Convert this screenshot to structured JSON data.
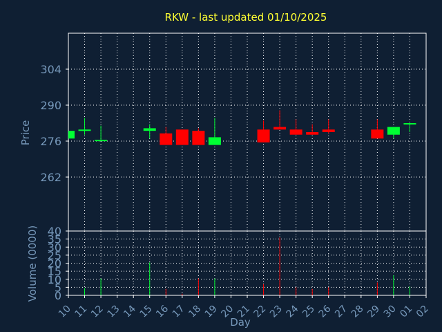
{
  "chart_data": [
    {
      "type": "candlestick",
      "title": "RKW - last updated 01/10/2025",
      "ylabel": "Price",
      "yticks": [
        "262",
        "276",
        "290",
        "304"
      ],
      "ylim": [
        241,
        318
      ],
      "grid": true,
      "colors": {
        "up": "#00ff33",
        "down": "#ff0000",
        "title": "#ffff33",
        "axis_text": "#7799bb",
        "background": "#0f1f33",
        "grid": "#ffffff"
      },
      "candles": [
        {
          "x": "10",
          "open": 277,
          "high": 280,
          "low": 277,
          "close": 280
        },
        {
          "x": "11",
          "open": 280.5,
          "high": 285,
          "low": 278.5,
          "close": 280.5
        },
        {
          "x": "12",
          "open": 276.5,
          "high": 282,
          "low": 276.5,
          "close": 276.5
        },
        {
          "x": "15",
          "open": 280,
          "high": 282.5,
          "low": 277,
          "close": 281
        },
        {
          "x": "16",
          "open": 279,
          "high": 281.5,
          "low": 274.5,
          "close": 274.5
        },
        {
          "x": "17",
          "open": 280.5,
          "high": 280.5,
          "low": 274.5,
          "close": 274.5
        },
        {
          "x": "18",
          "open": 280,
          "high": 281,
          "low": 274.5,
          "close": 274.5
        },
        {
          "x": "19",
          "open": 274.5,
          "high": 285,
          "low": 274.5,
          "close": 277.5
        },
        {
          "x": "22",
          "open": 280.5,
          "high": 284,
          "low": 275.5,
          "close": 275.5
        },
        {
          "x": "23",
          "open": 281.5,
          "high": 288,
          "low": 280.5,
          "close": 280.5
        },
        {
          "x": "24",
          "open": 280.5,
          "high": 284.5,
          "low": 278.5,
          "close": 278.5
        },
        {
          "x": "25",
          "open": 279.5,
          "high": 282.5,
          "low": 278.5,
          "close": 278.5
        },
        {
          "x": "26",
          "open": 280.5,
          "high": 284.5,
          "low": 279,
          "close": 279.5
        },
        {
          "x": "29",
          "open": 280.5,
          "high": 284.5,
          "low": 277,
          "close": 277
        },
        {
          "x": "30",
          "open": 278.5,
          "high": 281.5,
          "low": 277,
          "close": 281.5
        },
        {
          "x": "01",
          "open": 282.5,
          "high": 283,
          "low": 279.5,
          "close": 283
        }
      ]
    },
    {
      "type": "bar",
      "ylabel": "Volume (0000)",
      "xlabel": "Day",
      "yticks": [
        "0",
        "5",
        "10",
        "15",
        "20",
        "25",
        "30",
        "35",
        "40"
      ],
      "ylim": [
        0,
        40
      ],
      "categories": [
        "10",
        "11",
        "12",
        "13",
        "14",
        "15",
        "16",
        "17",
        "18",
        "19",
        "20",
        "21",
        "22",
        "23",
        "24",
        "25",
        "26",
        "27",
        "28",
        "29",
        "30",
        "01",
        "02"
      ],
      "bars": [
        {
          "x": "11",
          "value": 4.5,
          "dir": "up"
        },
        {
          "x": "12",
          "value": 10.5,
          "dir": "up"
        },
        {
          "x": "15",
          "value": 20.5,
          "dir": "up"
        },
        {
          "x": "16",
          "value": 4,
          "dir": "down"
        },
        {
          "x": "17",
          "value": 1,
          "dir": "down"
        },
        {
          "x": "18",
          "value": 10.5,
          "dir": "down"
        },
        {
          "x": "19",
          "value": 10.5,
          "dir": "up"
        },
        {
          "x": "22",
          "value": 7,
          "dir": "down"
        },
        {
          "x": "23",
          "value": 36,
          "dir": "down"
        },
        {
          "x": "24",
          "value": 5,
          "dir": "down"
        },
        {
          "x": "25",
          "value": 4,
          "dir": "down"
        },
        {
          "x": "26",
          "value": 5,
          "dir": "down"
        },
        {
          "x": "29",
          "value": 8,
          "dir": "down"
        },
        {
          "x": "30",
          "value": 12.5,
          "dir": "up"
        },
        {
          "x": "01",
          "value": 5.5,
          "dir": "up"
        }
      ]
    }
  ]
}
